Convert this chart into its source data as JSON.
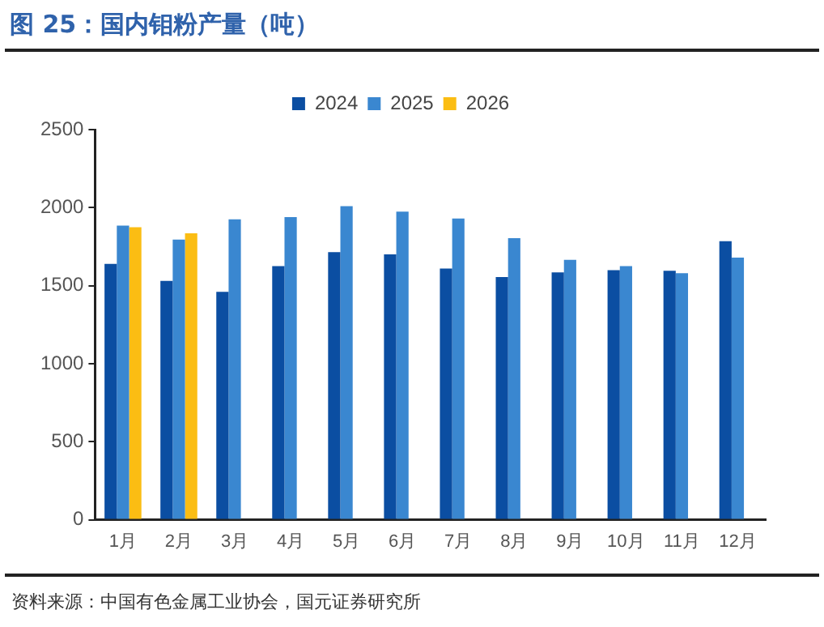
{
  "chart_data": {
    "type": "bar",
    "title": "图 25：国内钼粉产量（吨）",
    "categories": [
      "1月",
      "2月",
      "3月",
      "4月",
      "5月",
      "6月",
      "7月",
      "8月",
      "9月",
      "10月",
      "11月",
      "12月"
    ],
    "series": [
      {
        "name": "2024",
        "color": "#0b4ea2",
        "values": [
          1640,
          1530,
          1460,
          1625,
          1715,
          1700,
          1610,
          1555,
          1585,
          1600,
          1595,
          1785
        ]
      },
      {
        "name": "2025",
        "color": "#3a87d0",
        "values": [
          1885,
          1795,
          1925,
          1940,
          2010,
          1975,
          1930,
          1805,
          1665,
          1625,
          1580,
          1680
        ]
      },
      {
        "name": "2026",
        "color": "#fbbd13",
        "values": [
          1875,
          1835,
          null,
          null,
          null,
          null,
          null,
          null,
          null,
          null,
          null,
          null
        ]
      }
    ],
    "ylim": [
      0,
      2500
    ],
    "yticks": [
      0,
      500,
      1000,
      1500,
      2000,
      2500
    ],
    "grid": false,
    "legend": "top",
    "annotations": [
      "资料来源：中国有色金属工业协会，国元证券研究所"
    ]
  }
}
